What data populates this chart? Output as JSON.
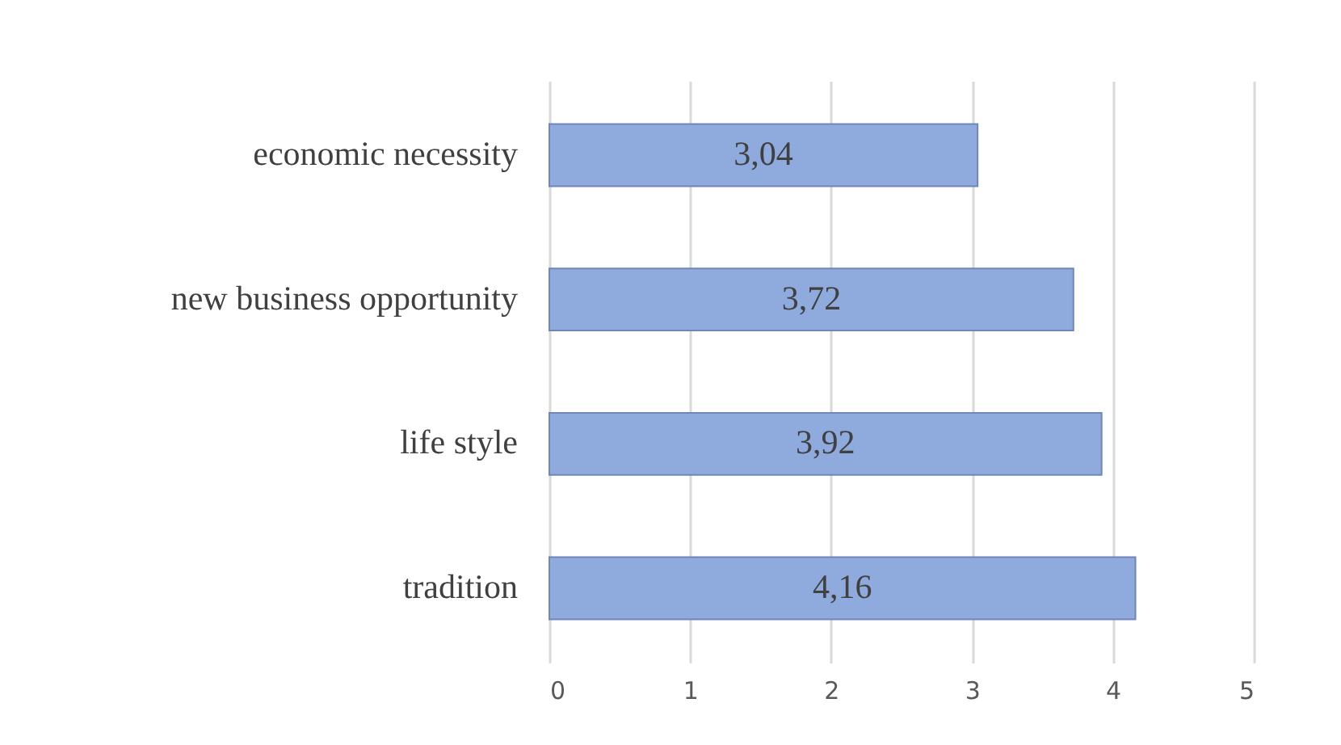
{
  "chart_data": {
    "type": "bar",
    "orientation": "horizontal",
    "categories": [
      "economic necessity",
      "new business opportunity",
      "life style",
      "tradition"
    ],
    "values": [
      3.04,
      3.72,
      3.92,
      4.16
    ],
    "value_labels": [
      "3,04",
      "3,72",
      "3,92",
      "4,16"
    ],
    "color": "#8faadc",
    "xlim": [
      0,
      5
    ],
    "xticks": [
      0,
      1,
      2,
      3,
      4,
      5
    ],
    "grid": "x"
  }
}
